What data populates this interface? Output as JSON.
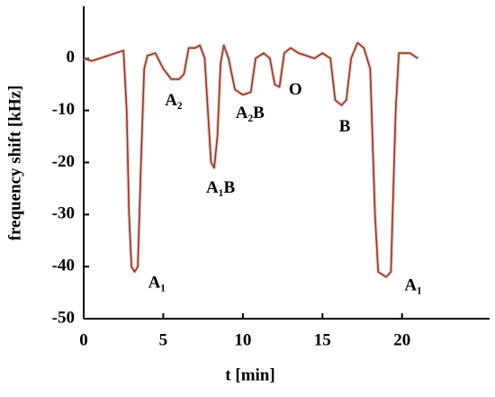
{
  "chart_data": {
    "type": "line",
    "xlabel": "t [min]",
    "ylabel": "frequency shift [kHz]",
    "x": [
      0,
      0.5,
      1,
      1.5,
      2,
      2.5,
      2.7,
      2.85,
      3.0,
      3.2,
      3.4,
      3.6,
      3.8,
      4,
      4.5,
      5,
      5.5,
      6,
      6.3,
      6.6,
      7,
      7.3,
      7.6,
      7.8,
      8,
      8.2,
      8.4,
      8.6,
      8.8,
      9.1,
      9.5,
      10,
      10.5,
      10.8,
      11.3,
      11.7,
      12,
      12.3,
      12.6,
      13,
      13.5,
      14,
      14.5,
      15,
      15.5,
      15.8,
      16.2,
      16.5,
      16.8,
      17.2,
      17.6,
      18,
      18.3,
      18.5,
      19,
      19.3,
      19.6,
      19.8,
      20.5,
      21
    ],
    "values": [
      0,
      -0.5,
      0,
      0.5,
      1,
      1.5,
      -10,
      -30,
      -40,
      -41,
      -40,
      -20,
      -2,
      0.5,
      1,
      -2,
      -4,
      -4,
      -3,
      2,
      2,
      2.5,
      0,
      -10,
      -20,
      -21,
      -15,
      -1,
      2.5,
      0,
      -6,
      -7,
      -6.5,
      0,
      1,
      0,
      -5,
      -5.5,
      1,
      2,
      1,
      0.5,
      0,
      1,
      0,
      -8,
      -9,
      -8,
      0,
      3,
      2,
      -2,
      -30,
      -41,
      -42,
      -41,
      -10,
      1,
      1,
      0
    ],
    "color": "#8b3a2a",
    "xlim": [
      0,
      25.5
    ],
    "xticks": [
      0,
      5,
      10,
      15,
      20
    ],
    "ylim": [
      -50,
      10
    ],
    "yticks": [
      -50,
      -40,
      -30,
      -20,
      -10,
      0
    ],
    "annotations": [
      {
        "text": "A₁",
        "x": 4.6,
        "y": -43.3
      },
      {
        "text": "A₂",
        "x": 5.65,
        "y": -8.3
      },
      {
        "text": "A₁B",
        "x": 8.6,
        "y": -25
      },
      {
        "text": "A₂B",
        "x": 10.45,
        "y": -10.7
      },
      {
        "text": "O",
        "x": 13.3,
        "y": -6.2
      },
      {
        "text": "B",
        "x": 16.4,
        "y": -13.3
      },
      {
        "text": "A₁",
        "x": 20.7,
        "y": -43.8
      }
    ]
  }
}
